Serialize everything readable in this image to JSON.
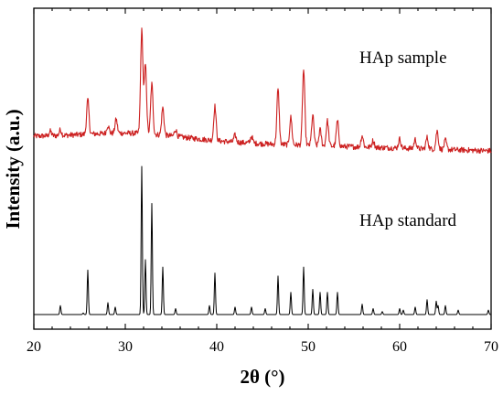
{
  "chart_data": {
    "type": "line",
    "xlabel": "2θ (°)",
    "ylabel": "Intensity (a.u.)",
    "xlim": [
      20,
      70
    ],
    "xticks": [
      "20",
      "30",
      "40",
      "50",
      "60",
      "70"
    ],
    "y_tick_labels": false,
    "grid": false,
    "series": [
      {
        "name": "HAp sample",
        "color": "#cc2020",
        "baseline": 0.67,
        "noise": 0.012,
        "peaks": [
          [
            21.8,
            0.02
          ],
          [
            22.9,
            0.025
          ],
          [
            25.9,
            0.15
          ],
          [
            28.1,
            0.035
          ],
          [
            29.0,
            0.06
          ],
          [
            31.8,
            0.45
          ],
          [
            32.2,
            0.3
          ],
          [
            32.9,
            0.22
          ],
          [
            34.1,
            0.12
          ],
          [
            35.5,
            0.03
          ],
          [
            39.8,
            0.15
          ],
          [
            42.0,
            0.03
          ],
          [
            43.8,
            0.03
          ],
          [
            46.7,
            0.24
          ],
          [
            48.1,
            0.12
          ],
          [
            49.5,
            0.33
          ],
          [
            50.5,
            0.13
          ],
          [
            51.3,
            0.07
          ],
          [
            52.1,
            0.11
          ],
          [
            53.2,
            0.11
          ],
          [
            55.9,
            0.05
          ],
          [
            57.1,
            0.03
          ],
          [
            60.0,
            0.04
          ],
          [
            61.7,
            0.04
          ],
          [
            63.0,
            0.05
          ],
          [
            64.1,
            0.08
          ],
          [
            65.0,
            0.04
          ]
        ]
      },
      {
        "name": "HAp standard",
        "color": "#000000",
        "baseline": 0.0,
        "noise": 0,
        "peaks": [
          [
            22.9,
            0.06
          ],
          [
            25.4,
            0.01
          ],
          [
            25.9,
            0.3
          ],
          [
            28.1,
            0.08
          ],
          [
            28.9,
            0.05
          ],
          [
            31.8,
            1.0
          ],
          [
            32.2,
            0.37
          ],
          [
            32.9,
            0.75
          ],
          [
            34.1,
            0.32
          ],
          [
            35.5,
            0.04
          ],
          [
            39.2,
            0.06
          ],
          [
            39.8,
            0.28
          ],
          [
            42.0,
            0.05
          ],
          [
            43.8,
            0.05
          ],
          [
            45.3,
            0.04
          ],
          [
            46.7,
            0.26
          ],
          [
            48.1,
            0.15
          ],
          [
            49.5,
            0.32
          ],
          [
            50.5,
            0.17
          ],
          [
            51.3,
            0.15
          ],
          [
            52.1,
            0.15
          ],
          [
            53.2,
            0.15
          ],
          [
            55.9,
            0.07
          ],
          [
            57.1,
            0.04
          ],
          [
            58.1,
            0.02
          ],
          [
            60.0,
            0.04
          ],
          [
            60.4,
            0.03
          ],
          [
            61.7,
            0.05
          ],
          [
            63.0,
            0.1
          ],
          [
            64.0,
            0.09
          ],
          [
            64.2,
            0.06
          ],
          [
            65.0,
            0.06
          ],
          [
            66.4,
            0.03
          ],
          [
            69.7,
            0.03
          ]
        ]
      }
    ]
  }
}
